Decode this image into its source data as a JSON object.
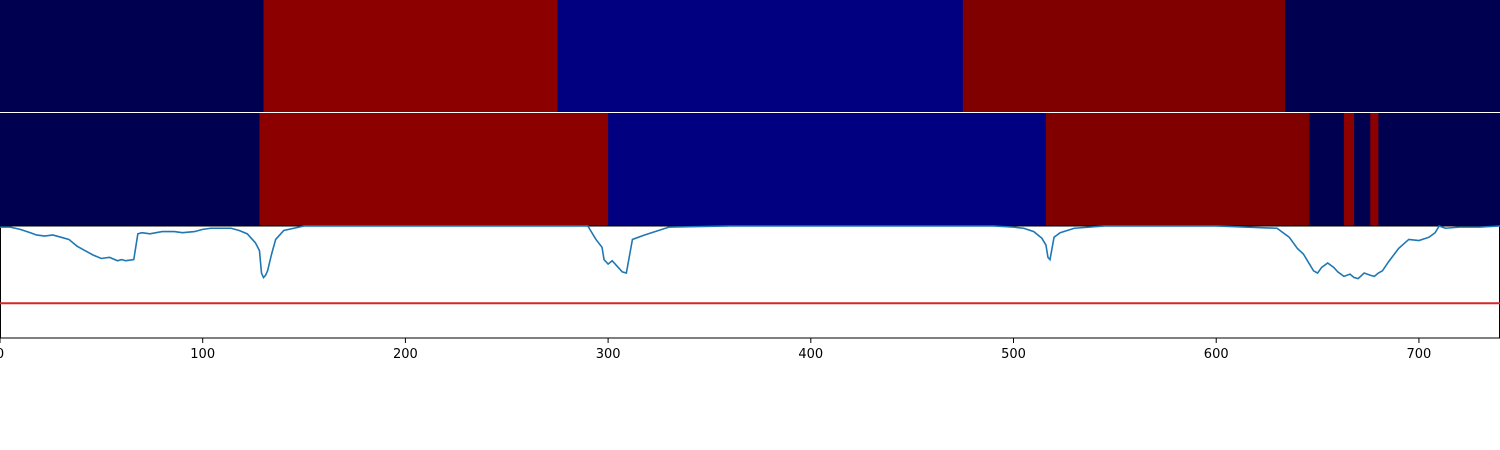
{
  "chart_data": [
    {
      "type": "heatmap",
      "name": "segmentation-band-1",
      "x_range": [
        0,
        740
      ],
      "segments": [
        {
          "start": 0,
          "end": 130,
          "color": "#000050"
        },
        {
          "start": 130,
          "end": 275,
          "color": "#8c0000"
        },
        {
          "start": 275,
          "end": 475,
          "color": "#000080"
        },
        {
          "start": 475,
          "end": 634,
          "color": "#800000"
        },
        {
          "start": 634,
          "end": 740,
          "color": "#000050"
        }
      ]
    },
    {
      "type": "heatmap",
      "name": "segmentation-band-2",
      "x_range": [
        0,
        740
      ],
      "segments": [
        {
          "start": 0,
          "end": 128,
          "color": "#000050"
        },
        {
          "start": 128,
          "end": 300,
          "color": "#8c0000"
        },
        {
          "start": 300,
          "end": 516,
          "color": "#000080"
        },
        {
          "start": 516,
          "end": 646,
          "color": "#800000"
        },
        {
          "start": 646,
          "end": 663,
          "color": "#000050"
        },
        {
          "start": 663,
          "end": 668,
          "color": "#8c0000"
        },
        {
          "start": 668,
          "end": 676,
          "color": "#000050"
        },
        {
          "start": 676,
          "end": 680,
          "color": "#8c0000"
        },
        {
          "start": 680,
          "end": 740,
          "color": "#000050"
        }
      ]
    },
    {
      "type": "line",
      "name": "signal-panel",
      "xlim": [
        0,
        740
      ],
      "ylim": [
        0,
        1
      ],
      "line_color": "#1f77b4",
      "threshold": 0.31,
      "threshold_color": "#d62728",
      "x": [
        0,
        5,
        10,
        15,
        18,
        22,
        26,
        30,
        34,
        38,
        42,
        46,
        50,
        54,
        58,
        60,
        62,
        66,
        68,
        70,
        74,
        80,
        86,
        90,
        96,
        100,
        104,
        108,
        114,
        118,
        122,
        126,
        128,
        129,
        130,
        131,
        132,
        134,
        136,
        140,
        145,
        150,
        160,
        200,
        250,
        290,
        294,
        297,
        298,
        300,
        302,
        305,
        307,
        309,
        312,
        318,
        330,
        360,
        400,
        450,
        490,
        500,
        505,
        510,
        514,
        516,
        517,
        518,
        519,
        520,
        523,
        530,
        545,
        560,
        600,
        630,
        636,
        640,
        643,
        646,
        648,
        650,
        652,
        655,
        658,
        660,
        663,
        666,
        668,
        670,
        673,
        676,
        678,
        680,
        682,
        685,
        690,
        695,
        700,
        705,
        708,
        710,
        713,
        720,
        730,
        740
      ],
      "y": [
        0.99,
        0.99,
        0.97,
        0.94,
        0.92,
        0.91,
        0.92,
        0.9,
        0.88,
        0.82,
        0.78,
        0.74,
        0.71,
        0.72,
        0.69,
        0.7,
        0.69,
        0.7,
        0.93,
        0.94,
        0.93,
        0.95,
        0.95,
        0.94,
        0.95,
        0.97,
        0.98,
        0.98,
        0.98,
        0.96,
        0.93,
        0.85,
        0.78,
        0.58,
        0.54,
        0.56,
        0.6,
        0.75,
        0.88,
        0.96,
        0.98,
        1.0,
        1.0,
        1.0,
        1.0,
        1.0,
        0.88,
        0.81,
        0.7,
        0.66,
        0.69,
        0.63,
        0.59,
        0.58,
        0.88,
        0.92,
        0.99,
        1.0,
        1.0,
        1.0,
        1.0,
        0.99,
        0.98,
        0.95,
        0.89,
        0.83,
        0.72,
        0.7,
        0.8,
        0.9,
        0.94,
        0.98,
        1.0,
        1.0,
        1.0,
        0.98,
        0.9,
        0.8,
        0.75,
        0.66,
        0.6,
        0.58,
        0.63,
        0.67,
        0.63,
        0.59,
        0.55,
        0.57,
        0.54,
        0.53,
        0.58,
        0.56,
        0.55,
        0.58,
        0.6,
        0.68,
        0.8,
        0.88,
        0.87,
        0.9,
        0.94,
        1.0,
        0.98,
        0.99,
        0.99,
        1.0
      ],
      "x_ticks": [
        0,
        100,
        200,
        300,
        400,
        500,
        600,
        700
      ],
      "tick_labels": [
        "0",
        "100",
        "200",
        "300",
        "400",
        "500",
        "600",
        "700"
      ]
    }
  ]
}
